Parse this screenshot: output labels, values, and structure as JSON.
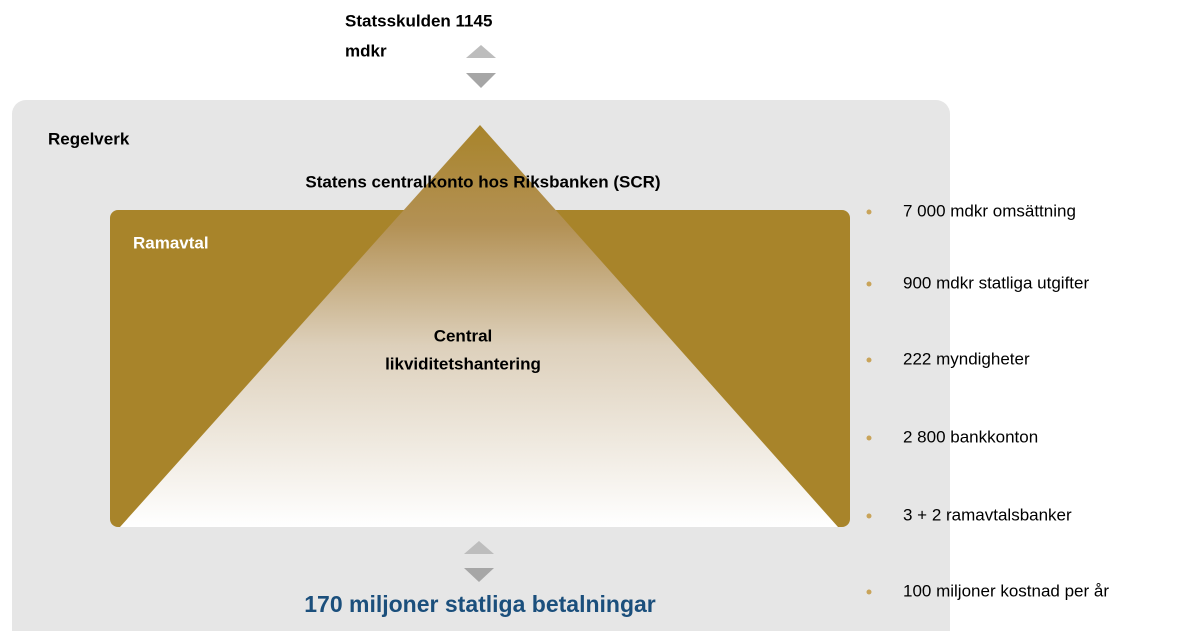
{
  "top_label": [
    "Statsskulden 1145",
    "mdkr"
  ],
  "outer_box": {
    "label": "Regelverk"
  },
  "scr_label": "Statens centralkonto hos Riksbanken (SCR)",
  "inner_box": {
    "label": "Ramavtal"
  },
  "pyramid_label": [
    "Central",
    "likviditetshantering"
  ],
  "bottom_label": "170 miljoner statliga betalningar",
  "facts": [
    "7 000 mdkr omsättning",
    "900 mdkr statliga utgifter",
    "222 myndigheter",
    "2 800 bankkonton",
    "3 + 2  ramavtalsbanker",
    "100 miljoner kostnad per år"
  ]
}
